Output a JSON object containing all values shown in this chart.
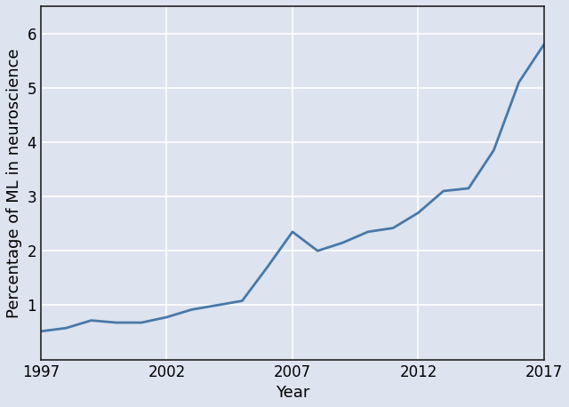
{
  "years": [
    1997,
    1998,
    1999,
    2000,
    2001,
    2002,
    2003,
    2004,
    2005,
    2006,
    2007,
    2008,
    2009,
    2010,
    2011,
    2012,
    2013,
    2014,
    2015,
    2016,
    2017
  ],
  "values": [
    0.52,
    0.58,
    0.72,
    0.68,
    0.68,
    0.78,
    0.92,
    1.0,
    1.08,
    1.7,
    2.35,
    2.0,
    2.15,
    2.35,
    2.42,
    2.7,
    3.1,
    3.15,
    3.85,
    5.1,
    5.8
  ],
  "line_color": "#4878a8",
  "line_width": 2.0,
  "plot_bg_color": "#dde3ef",
  "fig_bg_color": "#dde3ef",
  "xlabel": "Year",
  "ylabel": "Percentage of ML in neuroscience",
  "xlim": [
    1997,
    2017
  ],
  "ylim": [
    0,
    6.5
  ],
  "xticks": [
    1997,
    2002,
    2007,
    2012,
    2017
  ],
  "yticks": [
    1,
    2,
    3,
    4,
    5,
    6
  ],
  "grid_color": "#ffffff",
  "grid_linewidth": 1.2,
  "label_fontsize": 13,
  "tick_fontsize": 12,
  "spine_color": "#222222",
  "spine_linewidth": 1.2
}
